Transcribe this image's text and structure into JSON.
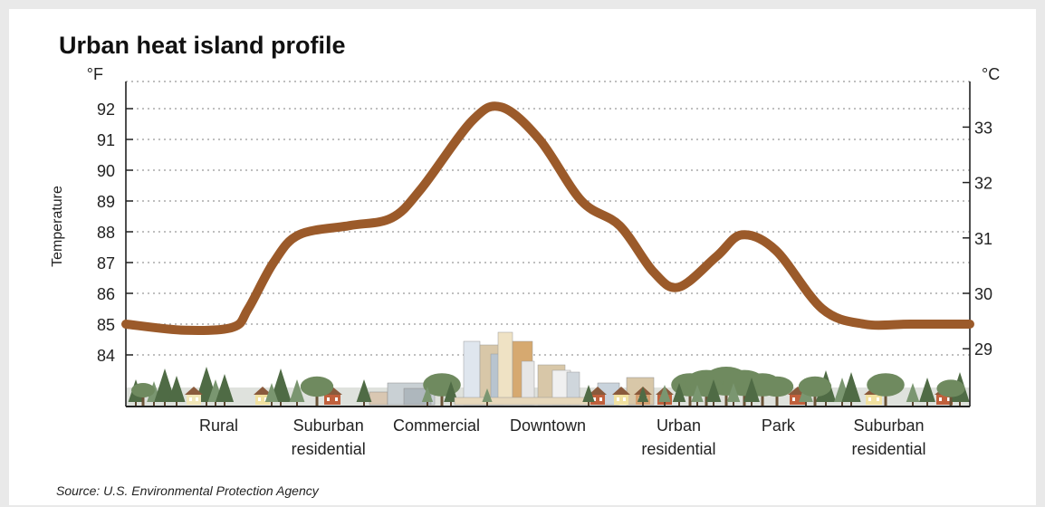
{
  "chart_data": {
    "type": "line",
    "title": "Urban heat island profile",
    "ylabel": "Temperature",
    "y_left_unit": "°F",
    "y_right_unit": "°C",
    "y_left_ticks": [
      84,
      85,
      86,
      87,
      88,
      89,
      90,
      91,
      92
    ],
    "y_right_ticks": [
      29,
      30,
      31,
      32,
      33
    ],
    "ylim_f": [
      82.9,
      93.1
    ],
    "grid": true,
    "zones": [
      {
        "label": [
          "Rural"
        ],
        "x": 0.11
      },
      {
        "label": [
          "Suburban",
          "residential"
        ],
        "x": 0.24
      },
      {
        "label": [
          "Commercial"
        ],
        "x": 0.368
      },
      {
        "label": [
          "Downtown"
        ],
        "x": 0.5
      },
      {
        "label": [
          "Urban",
          "residential"
        ],
        "x": 0.655
      },
      {
        "label": [
          "Park"
        ],
        "x": 0.773
      },
      {
        "label": [
          "Suburban",
          "residential"
        ],
        "x": 0.904
      }
    ],
    "series": [
      {
        "color": "#9b5a2a",
        "points": [
          [
            0.0,
            85.0
          ],
          [
            0.07,
            84.8
          ],
          [
            0.127,
            84.9
          ],
          [
            0.145,
            85.5
          ],
          [
            0.175,
            87.0
          ],
          [
            0.205,
            87.9
          ],
          [
            0.265,
            88.2
          ],
          [
            0.315,
            88.45
          ],
          [
            0.35,
            89.4
          ],
          [
            0.41,
            91.6
          ],
          [
            0.445,
            92.05
          ],
          [
            0.49,
            91.0
          ],
          [
            0.54,
            89.0
          ],
          [
            0.585,
            88.2
          ],
          [
            0.625,
            86.7
          ],
          [
            0.655,
            86.2
          ],
          [
            0.7,
            87.2
          ],
          [
            0.73,
            87.9
          ],
          [
            0.77,
            87.4
          ],
          [
            0.825,
            85.5
          ],
          [
            0.875,
            85.0
          ],
          [
            0.93,
            85.0
          ],
          [
            1.0,
            85.0
          ]
        ]
      }
    ]
  },
  "source": "Source: U.S. Environmental Protection Agency",
  "colors": {
    "line": "#9b5a2a",
    "grid": "#999999",
    "axis": "#222222",
    "tree_dark": "#4f6b45",
    "tree_light": "#7a9670",
    "ground": "#c9cfc6"
  },
  "illustration": [
    "tree-icon",
    "house-icon",
    "building-icon",
    "skyline-icon"
  ]
}
